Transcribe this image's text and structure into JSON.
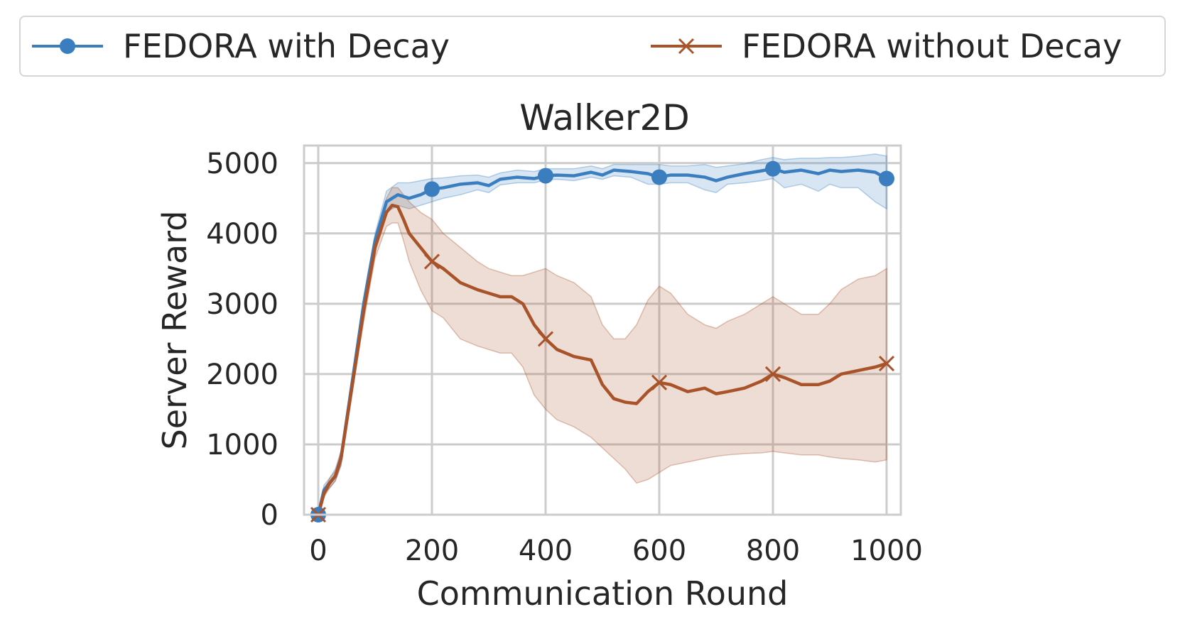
{
  "chart_data": {
    "type": "line",
    "title": "Walker2D",
    "xlabel": "Communication Round",
    "ylabel": "Server Reward",
    "xlim": [
      -25,
      1025
    ],
    "ylim": [
      0,
      5250
    ],
    "xticks": [
      "0",
      "200",
      "400",
      "600",
      "800",
      "1000"
    ],
    "yticks": [
      "0",
      "1000",
      "2000",
      "3000",
      "4000",
      "5000"
    ],
    "grid": true,
    "legend_position": "top, outside plot",
    "series": [
      {
        "name": "FEDORA with Decay",
        "color": "#3a7ebf",
        "marker": "circle",
        "marker_x": [
          0,
          200,
          400,
          600,
          800,
          1000
        ],
        "x": [
          0,
          10,
          20,
          30,
          40,
          60,
          80,
          100,
          120,
          140,
          160,
          180,
          200,
          220,
          250,
          280,
          300,
          320,
          350,
          380,
          400,
          420,
          450,
          480,
          500,
          520,
          550,
          580,
          600,
          620,
          650,
          680,
          700,
          720,
          750,
          780,
          800,
          820,
          850,
          880,
          900,
          920,
          950,
          980,
          1000
        ],
        "y": [
          0,
          350,
          450,
          550,
          800,
          1900,
          3000,
          3900,
          4450,
          4550,
          4500,
          4550,
          4630,
          4650,
          4700,
          4720,
          4680,
          4770,
          4800,
          4780,
          4820,
          4830,
          4820,
          4870,
          4830,
          4900,
          4880,
          4850,
          4800,
          4830,
          4830,
          4800,
          4750,
          4800,
          4850,
          4890,
          4920,
          4870,
          4900,
          4850,
          4900,
          4880,
          4900,
          4870,
          4780
        ],
        "lower": [
          0,
          300,
          380,
          480,
          700,
          1800,
          2900,
          3800,
          4300,
          4400,
          4350,
          4400,
          4450,
          4500,
          4550,
          4620,
          4580,
          4690,
          4720,
          4720,
          4760,
          4770,
          4750,
          4800,
          4770,
          4820,
          4800,
          4700,
          4700,
          4720,
          4720,
          4620,
          4580,
          4700,
          4720,
          4750,
          4780,
          4650,
          4700,
          4600,
          4700,
          4650,
          4650,
          4450,
          4350
        ],
        "upper": [
          0,
          420,
          520,
          650,
          900,
          2000,
          3100,
          4000,
          4600,
          4720,
          4720,
          4750,
          4780,
          4790,
          4820,
          4830,
          4800,
          4860,
          4900,
          4880,
          4920,
          4920,
          4920,
          4960,
          4920,
          4980,
          4980,
          4980,
          4980,
          4960,
          4960,
          4980,
          4940,
          4960,
          4990,
          5050,
          5080,
          5050,
          5070,
          5070,
          5080,
          5080,
          5100,
          5130,
          5100
        ]
      },
      {
        "name": "FEDORA without Decay",
        "color": "#a9532a",
        "marker": "x",
        "marker_x": [
          0,
          200,
          400,
          600,
          800,
          1000
        ],
        "x": [
          0,
          10,
          20,
          30,
          40,
          60,
          80,
          100,
          120,
          130,
          140,
          150,
          160,
          180,
          200,
          220,
          250,
          280,
          300,
          320,
          340,
          360,
          380,
          400,
          420,
          450,
          480,
          500,
          520,
          540,
          560,
          580,
          600,
          620,
          650,
          680,
          700,
          720,
          750,
          780,
          800,
          820,
          850,
          880,
          900,
          920,
          950,
          980,
          1000
        ],
        "y": [
          0,
          300,
          450,
          550,
          800,
          1850,
          2900,
          3800,
          4300,
          4400,
          4380,
          4200,
          4000,
          3800,
          3600,
          3500,
          3300,
          3200,
          3150,
          3100,
          3100,
          3000,
          2700,
          2500,
          2350,
          2250,
          2200,
          1850,
          1650,
          1600,
          1580,
          1750,
          1880,
          1850,
          1750,
          1800,
          1720,
          1750,
          1800,
          1900,
          2000,
          1950,
          1850,
          1850,
          1900,
          2000,
          2050,
          2100,
          2150
        ],
        "lower": [
          0,
          250,
          380,
          480,
          700,
          1750,
          2750,
          3650,
          4100,
          4150,
          4150,
          3900,
          3600,
          3200,
          2900,
          2800,
          2500,
          2400,
          2350,
          2300,
          2300,
          2100,
          1700,
          1500,
          1350,
          1250,
          1100,
          950,
          800,
          650,
          450,
          500,
          600,
          700,
          750,
          800,
          830,
          850,
          870,
          880,
          900,
          880,
          850,
          850,
          820,
          800,
          780,
          750,
          780
        ],
        "upper": [
          0,
          350,
          520,
          620,
          900,
          1950,
          3050,
          3950,
          4500,
          4650,
          4650,
          4550,
          4450,
          4300,
          4200,
          4000,
          3800,
          3600,
          3500,
          3450,
          3400,
          3400,
          3450,
          3500,
          3400,
          3300,
          3100,
          2700,
          2500,
          2500,
          2700,
          3050,
          3250,
          3150,
          2850,
          2700,
          2650,
          2750,
          2850,
          3000,
          3100,
          3000,
          2850,
          2850,
          3000,
          3200,
          3350,
          3400,
          3500
        ]
      }
    ]
  }
}
